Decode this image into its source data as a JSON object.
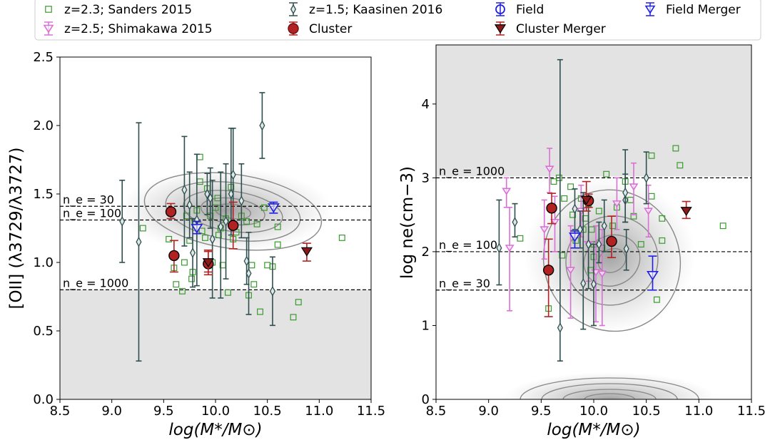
{
  "legend": {
    "entries": [
      {
        "label": "z=2.3; Sanders 2015",
        "marker": "square-open",
        "color": "#3a9a2f"
      },
      {
        "label": "z=1.5; Kaasinen 2016",
        "marker": "diamond-open",
        "color": "#2f4f4f"
      },
      {
        "label": "Field",
        "marker": "circle-open",
        "color": "#1f1fe0"
      },
      {
        "label": "Field Merger",
        "marker": "tri-down-open",
        "color": "#1f1fe0"
      },
      {
        "label": "z=2.5; Shimakawa 2015",
        "marker": "tri-down-open",
        "color": "#da70d6"
      },
      {
        "label": "Cluster",
        "marker": "circle-filled",
        "color": "#b22222"
      },
      {
        "label": "Cluster Merger",
        "marker": "tri-down-filled",
        "color": "#8b1a1a"
      }
    ]
  },
  "colors": {
    "sanders": "#3a9a2f",
    "kaasinen": "#2f4f4f",
    "shimakawa": "#da70d6",
    "cluster": "#b22222",
    "cluster_edge": "#6b0f0f",
    "field": "#1f1fe0",
    "shade": "#e3e3e3"
  },
  "chart_data": [
    {
      "type": "scatter",
      "xlabel": "log(M*/M⊙)",
      "ylabel": "[OII] (λ3729/λ3727)",
      "xlim": [
        8.5,
        11.5
      ],
      "ylim": [
        0.0,
        2.5
      ],
      "xticks": [
        "8.5",
        "9.0",
        "9.5",
        "10.0",
        "10.5",
        "11.0",
        "11.5"
      ],
      "yticks": [
        "0.0",
        "0.5",
        "1.0",
        "1.5",
        "2.0",
        "2.5"
      ],
      "shaded_bands": [
        [
          0.0,
          0.8
        ]
      ],
      "reference_lines": [
        {
          "y": 1.41,
          "label": "ne = 30"
        },
        {
          "y": 1.31,
          "label": "ne = 100"
        },
        {
          "y": 0.8,
          "label": "ne = 1000"
        }
      ],
      "series": [
        {
          "name": "z=2.3; Sanders 2015",
          "points": [
            [
              9.3,
              1.25
            ],
            [
              9.62,
              0.84
            ],
            [
              9.68,
              0.79
            ],
            [
              9.7,
              1.0
            ],
            [
              9.72,
              1.34
            ],
            [
              9.75,
              1.16
            ],
            [
              9.77,
              0.88
            ],
            [
              9.8,
              1.29
            ],
            [
              9.82,
              1.38
            ],
            [
              9.85,
              1.59
            ],
            [
              9.87,
              1.23
            ],
            [
              9.9,
              1.18
            ],
            [
              9.92,
              1.54
            ],
            [
              9.95,
              1.34
            ],
            [
              9.97,
              1.0
            ],
            [
              10.0,
              1.4
            ],
            [
              10.02,
              1.47
            ],
            [
              10.03,
              1.2
            ],
            [
              10.05,
              1.25
            ],
            [
              10.07,
              0.98
            ],
            [
              10.1,
              1.32
            ],
            [
              10.12,
              0.78
            ],
            [
              10.15,
              1.55
            ],
            [
              10.17,
              1.17
            ],
            [
              10.2,
              1.22
            ],
            [
              10.25,
              1.34
            ],
            [
              10.3,
              1.3
            ],
            [
              10.32,
              0.76
            ],
            [
              10.35,
              0.98
            ],
            [
              10.37,
              0.84
            ],
            [
              10.4,
              1.28
            ],
            [
              10.43,
              0.64
            ],
            [
              10.47,
              1.4
            ],
            [
              10.5,
              0.98
            ],
            [
              10.55,
              0.97
            ],
            [
              10.6,
              1.26
            ],
            [
              10.6,
              1.13
            ],
            [
              10.75,
              0.6
            ],
            [
              10.8,
              0.71
            ],
            [
              11.22,
              1.18
            ],
            [
              9.55,
              1.17
            ],
            [
              9.6,
              0.96
            ],
            [
              9.85,
              1.77
            ],
            [
              9.78,
              0.93
            ]
          ]
        },
        {
          "name": "z=1.5; Kaasinen 2016",
          "points": [
            {
              "x": 9.1,
              "y": 1.3,
              "ylo": 1.0,
              "yhi": 1.6
            },
            {
              "x": 9.26,
              "y": 1.15,
              "ylo": 0.28,
              "yhi": 2.02
            },
            {
              "x": 9.7,
              "y": 1.53,
              "ylo": 1.12,
              "yhi": 1.92
            },
            {
              "x": 9.75,
              "y": 1.42,
              "ylo": 1.18,
              "yhi": 1.66
            },
            {
              "x": 9.78,
              "y": 1.07,
              "ylo": 0.82,
              "yhi": 1.32
            },
            {
              "x": 9.82,
              "y": 1.31,
              "ylo": 0.83,
              "yhi": 1.79
            },
            {
              "x": 9.92,
              "y": 1.5,
              "ylo": 1.35,
              "yhi": 1.65
            },
            {
              "x": 9.95,
              "y": 1.47,
              "ylo": 1.25,
              "yhi": 1.69
            },
            {
              "x": 9.97,
              "y": 1.17,
              "ylo": 0.74,
              "yhi": 1.6
            },
            {
              "x": 10.05,
              "y": 1.26,
              "ylo": 0.74,
              "yhi": 1.66
            },
            {
              "x": 10.1,
              "y": 1.3,
              "ylo": 0.88,
              "yhi": 1.72
            },
            {
              "x": 10.15,
              "y": 1.5,
              "ylo": 1.2,
              "yhi": 1.98
            },
            {
              "x": 10.17,
              "y": 1.64,
              "ylo": 1.3,
              "yhi": 1.98
            },
            {
              "x": 10.25,
              "y": 1.45,
              "ylo": 1.18,
              "yhi": 1.72
            },
            {
              "x": 10.3,
              "y": 1.01,
              "ylo": 0.84,
              "yhi": 1.18
            },
            {
              "x": 10.32,
              "y": 0.92,
              "ylo": 0.62,
              "yhi": 1.22
            },
            {
              "x": 10.45,
              "y": 2.0,
              "ylo": 1.76,
              "yhi": 2.24
            },
            {
              "x": 10.55,
              "y": 0.79,
              "ylo": 0.54,
              "yhi": 1.04
            }
          ]
        },
        {
          "name": "Cluster",
          "points": [
            {
              "x": 9.57,
              "y": 1.37,
              "ylo": 1.32,
              "yhi": 1.43
            },
            {
              "x": 9.6,
              "y": 1.05,
              "ylo": 0.93,
              "yhi": 1.16
            },
            {
              "x": 9.93,
              "y": 0.99,
              "ylo": 0.93,
              "yhi": 1.08
            },
            {
              "x": 10.17,
              "y": 1.27,
              "ylo": 1.1,
              "yhi": 1.44
            }
          ]
        },
        {
          "name": "Cluster Merger",
          "points": [
            {
              "x": 9.93,
              "y": 1.0,
              "ylo": 0.91,
              "yhi": 1.09
            },
            {
              "x": 10.88,
              "y": 1.08,
              "ylo": 1.01,
              "yhi": 1.14
            }
          ]
        },
        {
          "name": "Field Merger",
          "points": [
            {
              "x": 9.82,
              "y": 1.25,
              "ylo": 1.21,
              "yhi": 1.3
            },
            {
              "x": 10.56,
              "y": 1.4,
              "ylo": 1.36,
              "yhi": 1.44
            }
          ]
        }
      ],
      "density": {
        "x": 10.1,
        "y": 1.38
      }
    },
    {
      "type": "scatter",
      "xlabel": "log(M*/M⊙)",
      "ylabel": "log ne(cm−3)",
      "xlim": [
        8.5,
        11.5
      ],
      "ylim": [
        0.0,
        4.8
      ],
      "xticks": [
        "8.5",
        "9.0",
        "9.5",
        "10.0",
        "10.5",
        "11.0",
        "11.5"
      ],
      "yticks": [
        "0",
        "1",
        "2",
        "3",
        "4"
      ],
      "shaded_bands": [
        [
          3.02,
          4.8
        ]
      ],
      "reference_lines": [
        {
          "y": 3.0,
          "label": "ne = 1000"
        },
        {
          "y": 2.0,
          "label": "ne = 100"
        },
        {
          "y": 1.48,
          "label": "ne = 30"
        }
      ],
      "series": [
        {
          "name": "z=2.3; Sanders 2015",
          "points": [
            [
              9.3,
              2.18
            ],
            [
              9.57,
              1.23
            ],
            [
              9.62,
              2.95
            ],
            [
              9.67,
              3.0
            ],
            [
              9.7,
              1.95
            ],
            [
              9.72,
              2.72
            ],
            [
              9.78,
              2.88
            ],
            [
              9.8,
              2.5
            ],
            [
              9.83,
              2.15
            ],
            [
              9.88,
              2.72
            ],
            [
              9.92,
              2.45
            ],
            [
              9.95,
              2.65
            ],
            [
              9.98,
              2.3
            ],
            [
              10.0,
              2.1
            ],
            [
              10.05,
              2.55
            ],
            [
              10.08,
              2.05
            ],
            [
              10.12,
              3.05
            ],
            [
              10.18,
              2.35
            ],
            [
              10.22,
              2.6
            ],
            [
              10.3,
              2.95
            ],
            [
              10.35,
              2.7
            ],
            [
              10.38,
              2.48
            ],
            [
              10.45,
              2.1
            ],
            [
              10.55,
              3.3
            ],
            [
              10.55,
              2.75
            ],
            [
              10.6,
              1.35
            ],
            [
              10.65,
              2.45
            ],
            [
              10.65,
              2.15
            ],
            [
              10.78,
              3.4
            ],
            [
              10.82,
              3.17
            ],
            [
              11.23,
              2.35
            ],
            [
              9.9,
              2.3
            ],
            [
              9.97,
              1.75
            ],
            [
              10.0,
              1.93
            ]
          ]
        },
        {
          "name": "z=2.5; Shimakawa 2015",
          "points": [
            {
              "x": 9.17,
              "y": 2.82,
              "ylo": 2.6,
              "yhi": 3.0
            },
            {
              "x": 9.2,
              "y": 2.05,
              "ylo": 1.2,
              "yhi": 2.6
            },
            {
              "x": 9.53,
              "y": 2.3,
              "ylo": 1.9,
              "yhi": 2.7
            },
            {
              "x": 9.58,
              "y": 3.12,
              "ylo": 2.8,
              "yhi": 3.4
            },
            {
              "x": 9.63,
              "y": 2.4,
              "ylo": 2.0,
              "yhi": 2.75
            },
            {
              "x": 9.78,
              "y": 1.75,
              "ylo": 1.1,
              "yhi": 2.35
            },
            {
              "x": 9.88,
              "y": 2.55,
              "ylo": 2.2,
              "yhi": 2.9
            },
            {
              "x": 9.95,
              "y": 2.1,
              "ylo": 1.6,
              "yhi": 2.6
            },
            {
              "x": 10.02,
              "y": 1.72,
              "ylo": 1.05,
              "yhi": 2.35
            },
            {
              "x": 10.08,
              "y": 1.7,
              "ylo": 1.0,
              "yhi": 2.3
            },
            {
              "x": 10.22,
              "y": 2.65,
              "ylo": 2.3,
              "yhi": 3.0
            },
            {
              "x": 10.38,
              "y": 2.88,
              "ylo": 2.5,
              "yhi": 3.2
            },
            {
              "x": 10.52,
              "y": 2.55,
              "ylo": 2.2,
              "yhi": 2.9
            }
          ]
        },
        {
          "name": "z=1.5; Kaasinen 2016",
          "points": [
            {
              "x": 9.1,
              "y": 2.05,
              "ylo": 1.55,
              "yhi": 2.7
            },
            {
              "x": 9.25,
              "y": 2.4,
              "ylo": 2.2,
              "yhi": 2.65
            },
            {
              "x": 9.68,
              "y": 0.97,
              "ylo": 0.52,
              "yhi": 4.6
            },
            {
              "x": 9.82,
              "y": 2.58,
              "ylo": 2.3,
              "yhi": 2.85
            },
            {
              "x": 9.87,
              "y": 2.3,
              "ylo": 2.05,
              "yhi": 2.55
            },
            {
              "x": 9.9,
              "y": 1.57,
              "ylo": 0.95,
              "yhi": 2.8
            },
            {
              "x": 9.95,
              "y": 2.1,
              "ylo": 1.5,
              "yhi": 2.65
            },
            {
              "x": 10.0,
              "y": 1.56,
              "ylo": 1.0,
              "yhi": 2.1
            },
            {
              "x": 10.05,
              "y": 2.1,
              "ylo": 1.85,
              "yhi": 2.4
            },
            {
              "x": 10.1,
              "y": 2.35,
              "ylo": 2.0,
              "yhi": 2.7
            },
            {
              "x": 10.3,
              "y": 2.7,
              "ylo": 2.4,
              "yhi": 3.05
            },
            {
              "x": 10.3,
              "y": 2.8,
              "ylo": 2.4,
              "yhi": 3.38
            },
            {
              "x": 10.31,
              "y": 2.04,
              "ylo": 1.75,
              "yhi": 2.3
            },
            {
              "x": 10.5,
              "y": 3.0,
              "ylo": 2.65,
              "yhi": 3.35
            }
          ]
        },
        {
          "name": "Cluster",
          "points": [
            {
              "x": 9.57,
              "y": 1.75,
              "ylo": 1.12,
              "yhi": 2.17
            },
            {
              "x": 9.6,
              "y": 2.59,
              "ylo": 2.38,
              "yhi": 2.79
            },
            {
              "x": 9.95,
              "y": 2.69,
              "ylo": 2.6,
              "yhi": 2.78
            },
            {
              "x": 10.17,
              "y": 2.14,
              "ylo": 1.92,
              "yhi": 2.48
            }
          ]
        },
        {
          "name": "Cluster Merger",
          "points": [
            {
              "x": 9.93,
              "y": 2.7,
              "ylo": 2.55,
              "yhi": 2.95
            },
            {
              "x": 10.88,
              "y": 2.55,
              "ylo": 2.45,
              "yhi": 2.68
            }
          ]
        },
        {
          "name": "Field Merger",
          "points": [
            {
              "x": 9.82,
              "y": 2.2,
              "ylo": 2.05,
              "yhi": 2.28
            },
            {
              "x": 10.56,
              "y": 1.68,
              "ylo": 1.48,
              "yhi": 1.94
            }
          ]
        }
      ],
      "density": {
        "x": 10.15,
        "y": 1.95
      }
    }
  ],
  "annotations": {
    "left": [
      "n_e = 30",
      "n_e = 100",
      "n_e = 1000"
    ],
    "right": [
      "n_e = 1000",
      "n_e = 100",
      "n_e = 30"
    ]
  }
}
